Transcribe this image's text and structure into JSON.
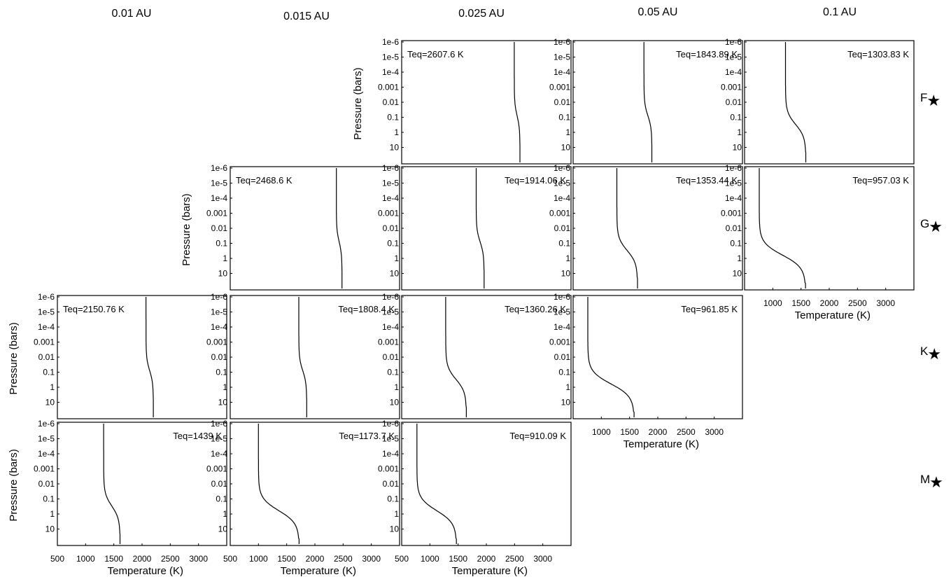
{
  "columns": [
    "0.01 AU",
    "0.015 AU",
    "0.025 AU",
    "0.05 AU",
    "0.1 AU"
  ],
  "rows": [
    {
      "letter": "F",
      "symbol": "★"
    },
    {
      "letter": "G",
      "symbol": "★"
    },
    {
      "letter": "K",
      "symbol": "★"
    },
    {
      "letter": "M",
      "symbol": "★"
    }
  ],
  "chart_data": {
    "type": "line",
    "xlabel": "Temperature (K)",
    "ylabel": "Pressure (bars)",
    "y_scale": "log",
    "y_inverted": true,
    "ylim": [
      1e-06,
      100
    ],
    "xlim": [
      500,
      3500
    ],
    "y_tick_labels": [
      "1e-6",
      "1e-5",
      "1e-4",
      "0.001",
      "0.01",
      "0.1",
      "1",
      "10"
    ],
    "y_tick_values": [
      1e-06,
      1e-05,
      0.0001,
      0.001,
      0.01,
      0.1,
      1,
      10
    ],
    "x_tick_sets": [
      {
        "labels": [
          "500",
          "1000",
          "1500",
          "2000",
          "2500",
          "3000"
        ],
        "values": [
          500,
          1000,
          1500,
          2000,
          2500,
          3000
        ]
      },
      {
        "labels": [
          "1000",
          "1500",
          "2000",
          "2500",
          "3000"
        ],
        "values": [
          1000,
          1500,
          2000,
          2500,
          3000
        ]
      }
    ],
    "panels": [
      {
        "row": 0,
        "col": 2,
        "teq": "Teq=2607.6 K",
        "t_upper": 2495,
        "t_lower": 2595,
        "p_knee": 0.08,
        "ylabel": true
      },
      {
        "row": 0,
        "col": 3,
        "teq": "Teq=1843.89 K",
        "t_upper": 1755,
        "t_lower": 1895,
        "p_knee": 0.08
      },
      {
        "row": 0,
        "col": 4,
        "teq": "Teq=1303.83 K",
        "t_upper": 1225,
        "t_lower": 1585,
        "p_knee": 0.3
      },
      {
        "row": 1,
        "col": 1,
        "teq": "Teq=2468.6 K",
        "t_upper": 2380,
        "t_lower": 2480,
        "p_knee": 0.08,
        "ylabel": true
      },
      {
        "row": 1,
        "col": 2,
        "teq": "Teq=1914.06 K",
        "t_upper": 1820,
        "t_lower": 1960,
        "p_knee": 0.08
      },
      {
        "row": 1,
        "col": 3,
        "teq": "Teq=1353.44 K",
        "t_upper": 1275,
        "t_lower": 1640,
        "p_knee": 0.3
      },
      {
        "row": 1,
        "col": 4,
        "teq": "Teq=957.03 K",
        "t_upper": 760,
        "t_lower": 1580,
        "p_knee": 0.6,
        "xaxis": 1
      },
      {
        "row": 2,
        "col": 0,
        "teq": "Teq=2150.76 K",
        "t_upper": 2070,
        "t_lower": 2200,
        "p_knee": 0.08,
        "ylabel": true
      },
      {
        "row": 2,
        "col": 1,
        "teq": "Teq=1808.4 K",
        "t_upper": 1715,
        "t_lower": 1855,
        "p_knee": 0.08
      },
      {
        "row": 2,
        "col": 2,
        "teq": "Teq=1360.26 K",
        "t_upper": 1280,
        "t_lower": 1645,
        "p_knee": 0.3
      },
      {
        "row": 2,
        "col": 3,
        "teq": "Teq=961.85 K",
        "t_upper": 760,
        "t_lower": 1580,
        "p_knee": 0.6,
        "xaxis": 1
      },
      {
        "row": 3,
        "col": 0,
        "teq": "Teq=1439 K",
        "t_upper": 1320,
        "t_lower": 1610,
        "p_knee": 0.3,
        "ylabel": true,
        "xaxis": 0
      },
      {
        "row": 3,
        "col": 1,
        "teq": "Teq=1173.7 K",
        "t_upper": 1000,
        "t_lower": 1720,
        "p_knee": 0.6,
        "xaxis": 0
      },
      {
        "row": 3,
        "col": 2,
        "teq": "Teq=910.09 K",
        "t_upper": 770,
        "t_lower": 1470,
        "p_knee": 0.6,
        "xaxis": 0
      }
    ]
  }
}
